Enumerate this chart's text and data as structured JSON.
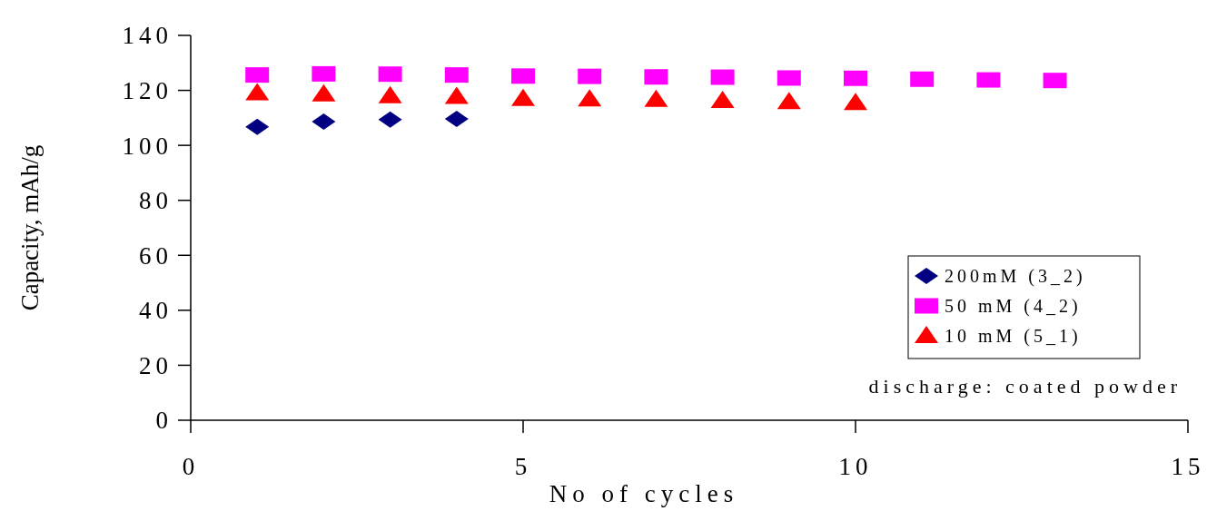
{
  "chart_data": {
    "type": "scatter",
    "xlabel": "No of cycles",
    "ylabel": "Capacity, mAh/g",
    "xlim": [
      0,
      15
    ],
    "xticks": [
      0,
      5,
      10,
      15
    ],
    "ylim": [
      0,
      140
    ],
    "yticks": [
      0,
      20,
      40,
      60,
      80,
      100,
      120,
      140
    ],
    "legend": "bottom right",
    "annotations": [
      "discharge: coated powder"
    ],
    "series": [
      {
        "name": "200mM (3_2)",
        "color": "#000080",
        "marker": "diamond",
        "x": [
          1,
          2,
          3,
          4
        ],
        "values": [
          106.7,
          108.6,
          109.4,
          109.6
        ]
      },
      {
        "name": "50 mM (4_2)",
        "color": "#ff00ff",
        "marker": "square",
        "x": [
          1,
          2,
          3,
          4,
          5,
          6,
          7,
          8,
          9,
          10,
          11,
          12,
          13
        ],
        "values": [
          125.6,
          126.0,
          125.9,
          125.6,
          125.2,
          125.1,
          124.9,
          124.8,
          124.5,
          124.4,
          124.1,
          123.8,
          123.6
        ]
      },
      {
        "name": "10 mM (5_1)",
        "color": "#ff0000",
        "marker": "triangle",
        "x": [
          1,
          2,
          3,
          4,
          5,
          6,
          7,
          8,
          9,
          10
        ],
        "values": [
          119.0,
          118.6,
          118.0,
          117.7,
          117.0,
          116.8,
          116.6,
          116.2,
          115.8,
          115.5
        ]
      }
    ]
  }
}
